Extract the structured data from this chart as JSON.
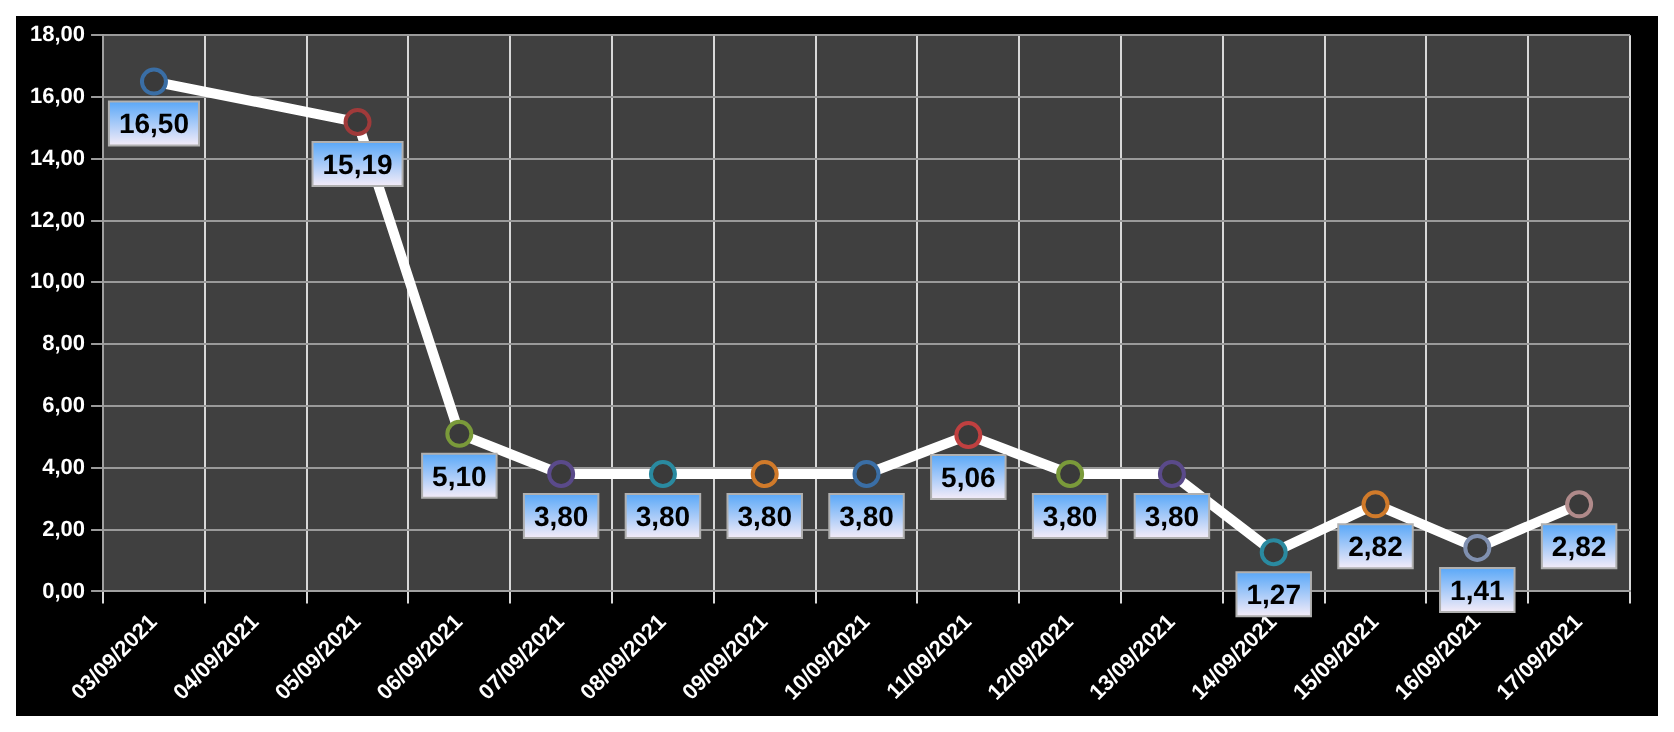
{
  "chart_data": {
    "type": "line",
    "categories": [
      "03/09/2021",
      "04/09/2021",
      "05/09/2021",
      "06/09/2021",
      "07/09/2021",
      "08/09/2021",
      "09/09/2021",
      "10/09/2021",
      "11/09/2021",
      "12/09/2021",
      "13/09/2021",
      "14/09/2021",
      "15/09/2021",
      "16/09/2021",
      "17/09/2021"
    ],
    "series": [
      {
        "color": "#ffffff",
        "values": [
          16.5,
          null,
          15.19,
          5.1,
          3.8,
          3.8,
          3.8,
          3.8,
          5.06,
          3.8,
          3.8,
          1.27,
          2.82,
          1.41,
          2.82
        ],
        "colors": [
          "#3a6ea5",
          "#000000",
          "#a03a3a",
          "#7a9a3a",
          "#5a4a8a",
          "#2a8aa0",
          "#d07a2a",
          "#3a6ea5",
          "#c04040",
          "#7a9a3a",
          "#5a4a8a",
          "#2a8aa0",
          "#d07a2a",
          "#8090b0",
          "#b08a8a"
        ],
        "value_labels": [
          "16,50",
          null,
          "15,19",
          "5,10",
          "3,80",
          "3,80",
          "3,80",
          "3,80",
          "5,06",
          "3,80",
          "3,80",
          "1,27",
          "2,82",
          "1,41",
          "2,82"
        ]
      }
    ],
    "ylim": [
      0,
      18
    ],
    "yticks": [
      {
        "value": 0,
        "label": "0,00"
      },
      {
        "value": 2,
        "label": "2,00"
      },
      {
        "value": 4,
        "label": "4,00"
      },
      {
        "value": 6,
        "label": "6,00"
      },
      {
        "value": 8,
        "label": "8,00"
      },
      {
        "value": 10,
        "label": "10,00"
      },
      {
        "value": 12,
        "label": "12,00"
      },
      {
        "value": 14,
        "label": "14,00"
      },
      {
        "value": 16,
        "label": "16,00"
      },
      {
        "value": 18,
        "label": "18,00"
      }
    ],
    "grid": true,
    "marker": "circle",
    "line_style": "solid",
    "legend": false
  }
}
